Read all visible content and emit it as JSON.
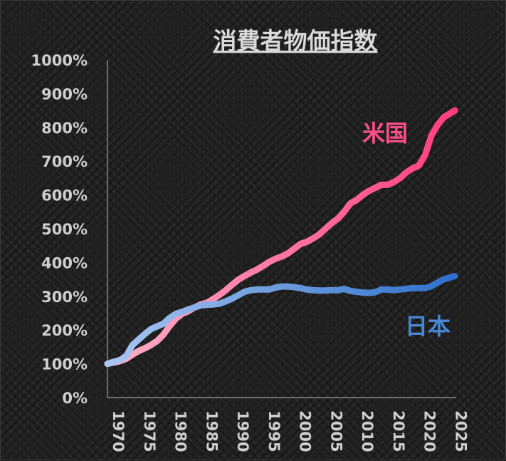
{
  "chart_data": {
    "type": "line",
    "title": "消費者物価指数",
    "xlabel": "",
    "ylabel": "",
    "ylim": [
      0,
      1000
    ],
    "xlim": [
      1970,
      2026
    ],
    "y_tick_labels": [
      "0%",
      "100%",
      "200%",
      "300%",
      "400%",
      "500%",
      "600%",
      "700%",
      "800%",
      "900%",
      "1000%"
    ],
    "x_tick_labels": [
      "1970",
      "1975",
      "1980",
      "1985",
      "1990",
      "1995",
      "2000",
      "2005",
      "2010",
      "2015",
      "2020",
      "2025"
    ],
    "grid": false,
    "series": [
      {
        "name": "米国",
        "color": "#ff3d7f",
        "color_start": "#ffb0c8",
        "x": [
          1970,
          1971,
          1972,
          1973,
          1974,
          1975,
          1976,
          1977,
          1978,
          1979,
          1980,
          1981,
          1982,
          1983,
          1984,
          1985,
          1986,
          1987,
          1988,
          1989,
          1990,
          1991,
          1992,
          1993,
          1994,
          1995,
          1996,
          1997,
          1998,
          1999,
          2000,
          2001,
          2002,
          2003,
          2004,
          2005,
          2006,
          2007,
          2008,
          2009,
          2010,
          2011,
          2012,
          2013,
          2014,
          2015,
          2016,
          2017,
          2018,
          2019,
          2020,
          2021,
          2022,
          2023,
          2024,
          2025.8
        ],
        "values": [
          100,
          104,
          108,
          115,
          127,
          138,
          146,
          156,
          168,
          187,
          212,
          234,
          248,
          256,
          267,
          276,
          281,
          292,
          304,
          318,
          334,
          349,
          360,
          370,
          379,
          390,
          402,
          411,
          418,
          427,
          441,
          455,
          461,
          471,
          483,
          500,
          516,
          530,
          550,
          575,
          585,
          600,
          612,
          621,
          630,
          630,
          638,
          650,
          667,
          679,
          687,
          718,
          775,
          807,
          830,
          850
        ]
      },
      {
        "name": "日本",
        "color": "#2e6fcc",
        "color_start": "#a9c6f0",
        "x": [
          1970,
          1971,
          1972,
          1973,
          1974,
          1975,
          1976,
          1977,
          1978,
          1979,
          1980,
          1981,
          1982,
          1983,
          1984,
          1985,
          1986,
          1987,
          1988,
          1989,
          1990,
          1991,
          1992,
          1993,
          1994,
          1995,
          1996,
          1997,
          1998,
          1999,
          2000,
          2001,
          2002,
          2003,
          2004,
          2005,
          2006,
          2007,
          2008,
          2009,
          2010,
          2011,
          2012,
          2013,
          2014,
          2015,
          2016,
          2017,
          2018,
          2019,
          2020,
          2021,
          2022,
          2023,
          2024,
          2025.8
        ],
        "values": [
          100,
          106,
          111,
          123,
          155,
          172,
          188,
          203,
          211,
          219,
          236,
          248,
          254,
          261,
          267,
          273,
          275,
          276,
          278,
          285,
          293,
          303,
          313,
          318,
          320,
          320,
          320,
          326,
          329,
          329,
          327,
          324,
          320,
          318,
          317,
          317,
          318,
          318,
          322,
          316,
          313,
          311,
          310,
          312,
          320,
          320,
          318,
          320,
          322,
          324,
          324,
          324,
          330,
          340,
          350,
          360
        ]
      }
    ],
    "annotations": [
      {
        "text": "米国",
        "series": "米国"
      },
      {
        "text": "日本",
        "series": "日本"
      }
    ]
  }
}
